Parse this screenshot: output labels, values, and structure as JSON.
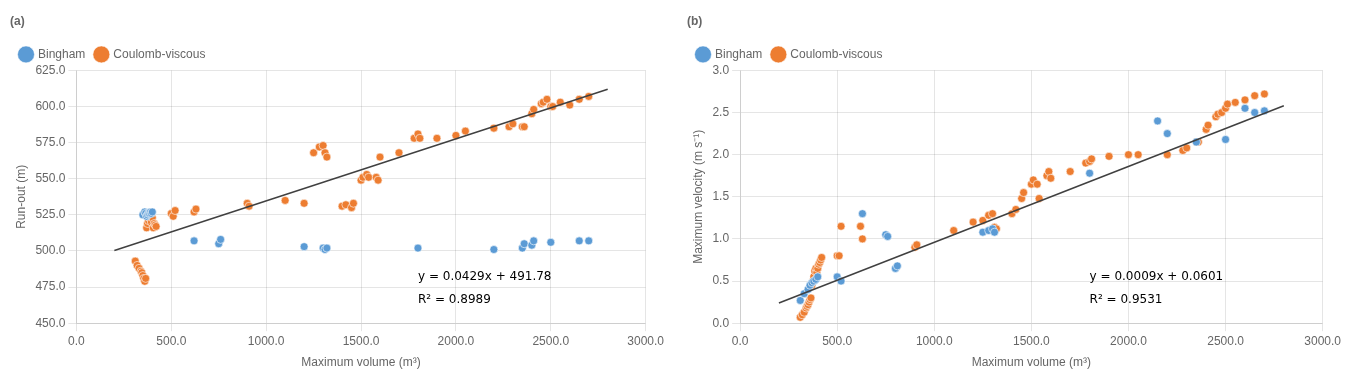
{
  "chart_data": [
    {
      "type": "scatter",
      "title": "(a)",
      "x_label": "Maximum volume (m³)",
      "y_label": "Run-out (m)",
      "xlim": [
        0.0,
        3000.0
      ],
      "ylim": [
        450.0,
        625.0
      ],
      "xticks": [
        {
          "value": 0,
          "label": "0.0"
        },
        {
          "value": 500,
          "label": "500.0"
        },
        {
          "value": 1000,
          "label": "1000.0"
        },
        {
          "value": 1500,
          "label": "1500.0"
        },
        {
          "value": 2000,
          "label": "2000.0"
        },
        {
          "value": 2500,
          "label": "2500.0"
        },
        {
          "value": 3000,
          "label": "3000.0"
        }
      ],
      "yticks": [
        {
          "value": 450,
          "label": "450.0"
        },
        {
          "value": 475,
          "label": "475.0"
        },
        {
          "value": 500,
          "label": "500.0"
        },
        {
          "value": 525,
          "label": "525.0"
        },
        {
          "value": 550,
          "label": "550.0"
        },
        {
          "value": 575,
          "label": "575.0"
        },
        {
          "value": 600,
          "label": "600.0"
        },
        {
          "value": 625,
          "label": "625.0"
        }
      ],
      "grid": true,
      "legend": "upper left",
      "annotations": [
        "y = 0.0429x + 491.78",
        "R² = 0.8989"
      ],
      "series": [
        {
          "name": "Bingham",
          "color": "#5B9BD5",
          "marker": "circle",
          "x": [
            350,
            360,
            365,
            370,
            375,
            380,
            385,
            390,
            395,
            400,
            620,
            750,
            760,
            1200,
            1300,
            1310,
            1320,
            1800,
            2200,
            2350,
            2360,
            2400,
            2410,
            2500,
            2650,
            2700
          ],
          "values": [
            525,
            527,
            526,
            524,
            525,
            526,
            526,
            527,
            526,
            527,
            507,
            505,
            508,
            503,
            502,
            501,
            502,
            502,
            501,
            502,
            505,
            504,
            507,
            506,
            507,
            507
          ]
        },
        {
          "name": "Coulomb-viscous",
          "color": "#ED7D31",
          "marker": "circle",
          "x": [
            310,
            320,
            330,
            340,
            345,
            350,
            355,
            360,
            365,
            370,
            375,
            380,
            385,
            390,
            395,
            400,
            405,
            410,
            415,
            420,
            500,
            510,
            520,
            620,
            630,
            900,
            910,
            1100,
            1200,
            1250,
            1280,
            1300,
            1310,
            1320,
            1400,
            1420,
            1450,
            1460,
            1500,
            1510,
            1530,
            1540,
            1580,
            1590,
            1600,
            1700,
            1780,
            1800,
            1810,
            1900,
            2000,
            2050,
            2200,
            2280,
            2300,
            2350,
            2360,
            2400,
            2410,
            2450,
            2460,
            2480,
            2500,
            2510,
            2550,
            2600,
            2650,
            2700
          ],
          "values": [
            493,
            490,
            488,
            486,
            485,
            483,
            481,
            479,
            481,
            516,
            519,
            521,
            523,
            525,
            520,
            523,
            516,
            519,
            518,
            517,
            526,
            524,
            528,
            527,
            529,
            533,
            531,
            535,
            533,
            568,
            572,
            573,
            568,
            565,
            531,
            532,
            530,
            533,
            549,
            551,
            553,
            551,
            551,
            549,
            565,
            568,
            578,
            581,
            578,
            578,
            580,
            583,
            585,
            586,
            588,
            586,
            586,
            595,
            598,
            602,
            603,
            605,
            600,
            600,
            603,
            601,
            605,
            607
          ]
        }
      ],
      "trendline": {
        "color": "#404040",
        "x": [
          200,
          2800
        ],
        "values": [
          500.36,
          611.9
        ]
      }
    },
    {
      "type": "scatter",
      "title": "(b)",
      "x_label": "Maximum volume (m³)",
      "y_label": "Maximum velocity (m s⁻¹)",
      "xlim": [
        0.0,
        3000.0
      ],
      "ylim": [
        0.0,
        3.0
      ],
      "xticks": [
        {
          "value": 0,
          "label": "0.0"
        },
        {
          "value": 500,
          "label": "500.0"
        },
        {
          "value": 1000,
          "label": "1000.0"
        },
        {
          "value": 1500,
          "label": "1500.0"
        },
        {
          "value": 2000,
          "label": "2000.0"
        },
        {
          "value": 2500,
          "label": "2500.0"
        },
        {
          "value": 3000,
          "label": "3000.0"
        }
      ],
      "yticks": [
        {
          "value": 0,
          "label": "0.0"
        },
        0.5,
        {
          "value": 1,
          "label": "1.0"
        },
        1.5,
        {
          "value": 2,
          "label": "2.0"
        },
        2.5,
        {
          "value": 3,
          "label": "3.0"
        }
      ],
      "grid": true,
      "legend": "upper left",
      "annotations": [
        "y = 0.0009x + 0.0601",
        "R² = 0.9531"
      ],
      "series": [
        {
          "name": "Bingham",
          "color": "#5B9BD5",
          "marker": "circle",
          "x": [
            310,
            330,
            350,
            360,
            370,
            380,
            390,
            400,
            500,
            520,
            630,
            750,
            760,
            800,
            810,
            1250,
            1280,
            1300,
            1310,
            1800,
            2150,
            2200,
            2350,
            2500,
            2600,
            2650,
            2700
          ],
          "values": [
            0.27,
            0.35,
            0.4,
            0.45,
            0.48,
            0.5,
            0.52,
            0.55,
            0.55,
            0.5,
            1.3,
            1.05,
            1.03,
            0.65,
            0.68,
            1.08,
            1.1,
            1.12,
            1.08,
            1.78,
            2.4,
            2.25,
            2.15,
            2.18,
            2.55,
            2.5,
            2.52
          ]
        },
        {
          "name": "Coulomb-viscous",
          "color": "#ED7D31",
          "marker": "circle",
          "x": [
            310,
            320,
            330,
            340,
            345,
            350,
            355,
            360,
            365,
            370,
            375,
            380,
            385,
            390,
            395,
            400,
            405,
            410,
            415,
            420,
            500,
            510,
            520,
            620,
            630,
            900,
            910,
            1100,
            1200,
            1250,
            1280,
            1300,
            1310,
            1320,
            1400,
            1420,
            1450,
            1460,
            1500,
            1510,
            1530,
            1540,
            1580,
            1590,
            1600,
            1700,
            1780,
            1800,
            1810,
            1900,
            2000,
            2050,
            2200,
            2280,
            2300,
            2350,
            2360,
            2400,
            2410,
            2450,
            2460,
            2480,
            2500,
            2510,
            2550,
            2600,
            2650,
            2700
          ],
          "values": [
            0.07,
            0.1,
            0.13,
            0.18,
            0.2,
            0.22,
            0.25,
            0.28,
            0.3,
            0.45,
            0.5,
            0.55,
            0.62,
            0.65,
            0.6,
            0.65,
            0.7,
            0.72,
            0.75,
            0.78,
            0.8,
            0.8,
            1.15,
            1.15,
            1.0,
            0.9,
            0.93,
            1.1,
            1.2,
            1.22,
            1.28,
            1.3,
            1.14,
            1.12,
            1.3,
            1.35,
            1.48,
            1.55,
            1.65,
            1.7,
            1.65,
            1.48,
            1.75,
            1.8,
            1.72,
            1.8,
            1.9,
            1.92,
            1.95,
            1.98,
            2.0,
            2.0,
            2.0,
            2.05,
            2.08,
            2.15,
            2.15,
            2.3,
            2.35,
            2.45,
            2.48,
            2.5,
            2.55,
            2.6,
            2.62,
            2.65,
            2.7,
            2.72
          ]
        }
      ],
      "trendline": {
        "color": "#404040",
        "x": [
          200,
          2800
        ],
        "values": [
          0.2401,
          2.5801
        ]
      }
    }
  ]
}
